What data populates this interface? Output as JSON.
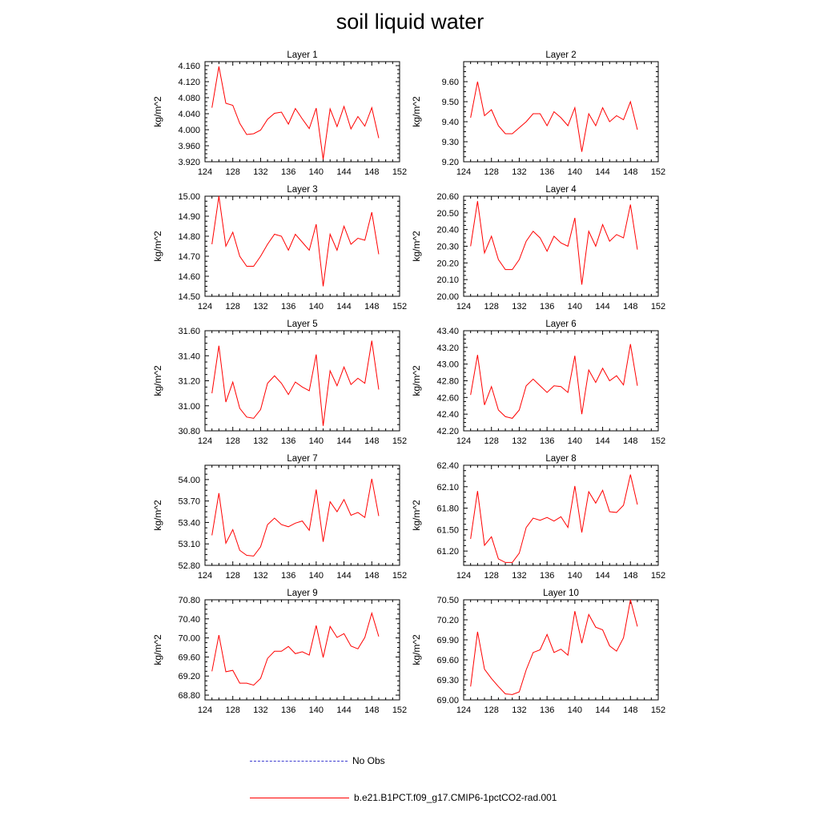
{
  "title": "soil liquid water",
  "legend": {
    "items": [
      {
        "label": "No Obs",
        "color": "#3b3bd0",
        "style": "dashed"
      },
      {
        "label": "b.e21.B1PCT.f09_g17.CMIP6-1pctCO2-rad.001",
        "color": "#ff0000",
        "style": "solid"
      }
    ]
  },
  "chart_data": [
    {
      "type": "line",
      "title": "Layer 1",
      "ylabel": "kg/m^2",
      "xlim": [
        124,
        152
      ],
      "xticks": [
        "124",
        "128",
        "132",
        "136",
        "140",
        "144",
        "148",
        "152"
      ],
      "ylim": [
        3.92,
        4.17
      ],
      "yticks": [
        "3.920",
        "3.960",
        "4.000",
        "4.040",
        "4.080",
        "4.120",
        "4.160"
      ],
      "grid": false,
      "series": [
        {
          "color": "#ff0000",
          "x": [
            125,
            126,
            127,
            128,
            129,
            130,
            131,
            132,
            133,
            134,
            135,
            136,
            137,
            138,
            139,
            140,
            141,
            142,
            143,
            144,
            145,
            146,
            147,
            148,
            149
          ],
          "y": [
            4.055,
            4.158,
            4.066,
            4.061,
            4.016,
            3.988,
            3.99,
            3.999,
            4.026,
            4.041,
            4.044,
            4.014,
            4.053,
            4.027,
            4.003,
            4.054,
            3.926,
            4.052,
            4.008,
            4.058,
            4.002,
            4.033,
            4.009,
            4.055,
            3.979
          ]
        }
      ]
    },
    {
      "type": "line",
      "title": "Layer 2",
      "ylabel": "kg/m^2",
      "xlim": [
        124,
        152
      ],
      "xticks": [
        "124",
        "128",
        "132",
        "136",
        "140",
        "144",
        "148",
        "152"
      ],
      "ylim": [
        9.2,
        9.7
      ],
      "yticks": [
        "9.20",
        "9.30",
        "9.40",
        "9.50",
        "9.60"
      ],
      "grid": false,
      "series": [
        {
          "color": "#ff0000",
          "x": [
            125,
            126,
            127,
            128,
            129,
            130,
            131,
            132,
            133,
            134,
            135,
            136,
            137,
            138,
            139,
            140,
            141,
            142,
            143,
            144,
            145,
            146,
            147,
            148,
            149
          ],
          "y": [
            9.42,
            9.6,
            9.43,
            9.46,
            9.38,
            9.34,
            9.34,
            9.37,
            9.4,
            9.44,
            9.44,
            9.38,
            9.45,
            9.42,
            9.38,
            9.47,
            9.25,
            9.44,
            9.38,
            9.47,
            9.4,
            9.43,
            9.41,
            9.5,
            9.36
          ]
        }
      ]
    },
    {
      "type": "line",
      "title": "Layer 3",
      "ylabel": "kg/m^2",
      "xlim": [
        124,
        152
      ],
      "xticks": [
        "124",
        "128",
        "132",
        "136",
        "140",
        "144",
        "148",
        "152"
      ],
      "ylim": [
        14.5,
        15.0
      ],
      "yticks": [
        "14.50",
        "14.60",
        "14.70",
        "14.80",
        "14.90",
        "15.00"
      ],
      "grid": false,
      "series": [
        {
          "color": "#ff0000",
          "x": [
            125,
            126,
            127,
            128,
            129,
            130,
            131,
            132,
            133,
            134,
            135,
            136,
            137,
            138,
            139,
            140,
            141,
            142,
            143,
            144,
            145,
            146,
            147,
            148,
            149
          ],
          "y": [
            14.76,
            15.0,
            14.75,
            14.82,
            14.7,
            14.65,
            14.65,
            14.7,
            14.76,
            14.81,
            14.8,
            14.73,
            14.81,
            14.77,
            14.73,
            14.86,
            14.55,
            14.81,
            14.73,
            14.85,
            14.76,
            14.79,
            14.78,
            14.92,
            14.71
          ]
        }
      ]
    },
    {
      "type": "line",
      "title": "Layer 4",
      "ylabel": "kg/m^2",
      "xlim": [
        124,
        152
      ],
      "xticks": [
        "124",
        "128",
        "132",
        "136",
        "140",
        "144",
        "148",
        "152"
      ],
      "ylim": [
        20.0,
        20.6
      ],
      "yticks": [
        "20.00",
        "20.10",
        "20.20",
        "20.30",
        "20.40",
        "20.50",
        "20.60"
      ],
      "grid": false,
      "series": [
        {
          "color": "#ff0000",
          "x": [
            125,
            126,
            127,
            128,
            129,
            130,
            131,
            132,
            133,
            134,
            135,
            136,
            137,
            138,
            139,
            140,
            141,
            142,
            143,
            144,
            145,
            146,
            147,
            148,
            149
          ],
          "y": [
            20.3,
            20.57,
            20.26,
            20.36,
            20.22,
            20.16,
            20.16,
            20.22,
            20.33,
            20.39,
            20.35,
            20.27,
            20.36,
            20.32,
            20.3,
            20.47,
            20.07,
            20.39,
            20.3,
            20.43,
            20.33,
            20.37,
            20.35,
            20.55,
            20.28
          ]
        }
      ]
    },
    {
      "type": "line",
      "title": "Layer 5",
      "ylabel": "kg/m^2",
      "xlim": [
        124,
        152
      ],
      "xticks": [
        "124",
        "128",
        "132",
        "136",
        "140",
        "144",
        "148",
        "152"
      ],
      "ylim": [
        30.8,
        31.6
      ],
      "yticks": [
        "30.80",
        "31.00",
        "31.20",
        "31.40",
        "31.60"
      ],
      "grid": false,
      "series": [
        {
          "color": "#ff0000",
          "x": [
            125,
            126,
            127,
            128,
            129,
            130,
            131,
            132,
            133,
            134,
            135,
            136,
            137,
            138,
            139,
            140,
            141,
            142,
            143,
            144,
            145,
            146,
            147,
            148,
            149
          ],
          "y": [
            31.1,
            31.48,
            31.03,
            31.19,
            30.98,
            30.91,
            30.9,
            30.97,
            31.18,
            31.24,
            31.18,
            31.09,
            31.19,
            31.15,
            31.12,
            31.41,
            30.84,
            31.28,
            31.16,
            31.31,
            31.17,
            31.22,
            31.18,
            31.52,
            31.13
          ]
        }
      ]
    },
    {
      "type": "line",
      "title": "Layer 6",
      "ylabel": "kg/m^2",
      "xlim": [
        124,
        152
      ],
      "xticks": [
        "124",
        "128",
        "132",
        "136",
        "140",
        "144",
        "148",
        "152"
      ],
      "ylim": [
        42.2,
        43.4
      ],
      "yticks": [
        "42.20",
        "42.40",
        "42.60",
        "42.80",
        "43.00",
        "43.20",
        "43.40"
      ],
      "grid": false,
      "series": [
        {
          "color": "#ff0000",
          "x": [
            125,
            126,
            127,
            128,
            129,
            130,
            131,
            132,
            133,
            134,
            135,
            136,
            137,
            138,
            139,
            140,
            141,
            142,
            143,
            144,
            145,
            146,
            147,
            148,
            149
          ],
          "y": [
            42.63,
            43.11,
            42.51,
            42.73,
            42.45,
            42.37,
            42.35,
            42.45,
            42.74,
            42.82,
            42.74,
            42.66,
            42.74,
            42.73,
            42.66,
            43.1,
            42.4,
            42.93,
            42.78,
            42.95,
            42.8,
            42.86,
            42.75,
            43.24,
            42.74
          ]
        }
      ]
    },
    {
      "type": "line",
      "title": "Layer 7",
      "ylabel": "kg/m^2",
      "xlim": [
        124,
        152
      ],
      "xticks": [
        "124",
        "128",
        "132",
        "136",
        "140",
        "144",
        "148",
        "152"
      ],
      "ylim": [
        52.8,
        54.2
      ],
      "yticks": [
        "52.80",
        "53.10",
        "53.40",
        "53.70",
        "54.00"
      ],
      "grid": false,
      "series": [
        {
          "color": "#ff0000",
          "x": [
            125,
            126,
            127,
            128,
            129,
            130,
            131,
            132,
            133,
            134,
            135,
            136,
            137,
            138,
            139,
            140,
            141,
            142,
            143,
            144,
            145,
            146,
            147,
            148,
            149
          ],
          "y": [
            53.22,
            53.81,
            53.11,
            53.3,
            53.01,
            52.94,
            52.93,
            53.06,
            53.37,
            53.46,
            53.37,
            53.34,
            53.39,
            53.42,
            53.29,
            53.86,
            53.13,
            53.69,
            53.55,
            53.72,
            53.5,
            53.54,
            53.47,
            54.01,
            53.49
          ]
        }
      ]
    },
    {
      "type": "line",
      "title": "Layer 8",
      "ylabel": "kg/m^2",
      "xlim": [
        124,
        152
      ],
      "xticks": [
        "124",
        "128",
        "132",
        "136",
        "140",
        "144",
        "148",
        "152"
      ],
      "ylim": [
        61.0,
        62.4
      ],
      "yticks": [
        "61.20",
        "61.50",
        "61.80",
        "62.10",
        "62.40"
      ],
      "grid": false,
      "series": [
        {
          "color": "#ff0000",
          "x": [
            125,
            126,
            127,
            128,
            129,
            130,
            131,
            132,
            133,
            134,
            135,
            136,
            137,
            138,
            139,
            140,
            141,
            142,
            143,
            144,
            145,
            146,
            147,
            148,
            149
          ],
          "y": [
            61.37,
            62.04,
            61.28,
            61.4,
            61.09,
            61.04,
            61.04,
            61.17,
            61.53,
            61.66,
            61.63,
            61.67,
            61.62,
            61.68,
            61.53,
            62.11,
            61.46,
            62.03,
            61.87,
            62.05,
            61.75,
            61.74,
            61.84,
            62.27,
            61.85
          ]
        }
      ]
    },
    {
      "type": "line",
      "title": "Layer 9",
      "ylabel": "kg/m^2",
      "xlim": [
        124,
        152
      ],
      "xticks": [
        "124",
        "128",
        "132",
        "136",
        "140",
        "144",
        "148",
        "152"
      ],
      "ylim": [
        68.7,
        70.8
      ],
      "yticks": [
        "68.80",
        "69.20",
        "69.60",
        "70.00",
        "70.40",
        "70.80"
      ],
      "grid": false,
      "series": [
        {
          "color": "#ff0000",
          "x": [
            125,
            126,
            127,
            128,
            129,
            130,
            131,
            132,
            133,
            134,
            135,
            136,
            137,
            138,
            139,
            140,
            141,
            142,
            143,
            144,
            145,
            146,
            147,
            148,
            149
          ],
          "y": [
            69.3,
            70.06,
            69.29,
            69.32,
            69.05,
            69.05,
            69.01,
            69.15,
            69.57,
            69.72,
            69.72,
            69.82,
            69.67,
            69.71,
            69.64,
            70.26,
            69.59,
            70.24,
            70.01,
            70.09,
            69.83,
            69.77,
            70.01,
            70.52,
            70.03
          ]
        }
      ]
    },
    {
      "type": "line",
      "title": "Layer 10",
      "ylabel": "kg/m^2",
      "xlim": [
        124,
        152
      ],
      "xticks": [
        "124",
        "128",
        "132",
        "136",
        "140",
        "144",
        "148",
        "152"
      ],
      "ylim": [
        69.0,
        70.5
      ],
      "yticks": [
        "69.00",
        "69.30",
        "69.60",
        "69.90",
        "70.20",
        "70.50"
      ],
      "grid": false,
      "series": [
        {
          "color": "#ff0000",
          "x": [
            125,
            126,
            127,
            128,
            129,
            130,
            131,
            132,
            133,
            134,
            135,
            136,
            137,
            138,
            139,
            140,
            141,
            142,
            143,
            144,
            145,
            146,
            147,
            148,
            149
          ],
          "y": [
            69.2,
            70.02,
            69.46,
            69.32,
            69.2,
            69.09,
            69.08,
            69.12,
            69.45,
            69.71,
            69.75,
            69.98,
            69.71,
            69.76,
            69.67,
            70.33,
            69.85,
            70.28,
            70.09,
            70.05,
            69.81,
            69.73,
            69.93,
            70.5,
            70.1
          ]
        }
      ]
    }
  ]
}
